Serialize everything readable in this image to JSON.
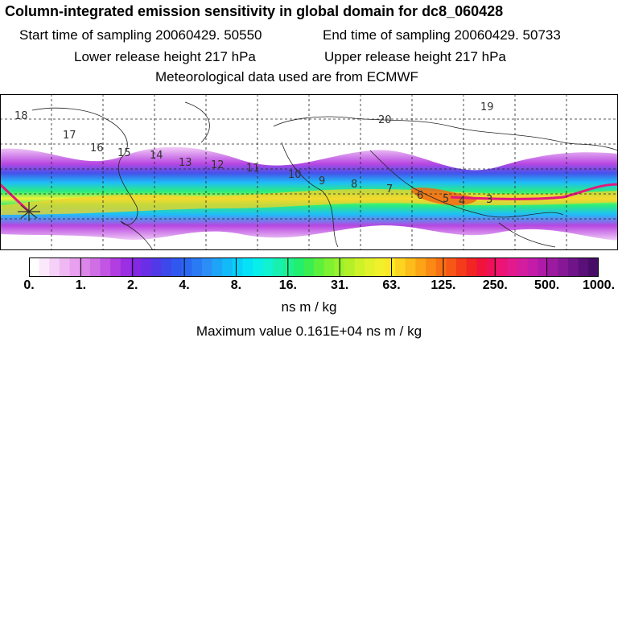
{
  "header": {
    "title": "Column-integrated emission sensitivity in global domain for dc8_060428",
    "start_label": "Start time of sampling 20060429. 50550",
    "end_label": "End time of sampling 20060429. 50733",
    "lower_label": "Lower release height  217 hPa",
    "upper_label": "Upper release height  217 hPa",
    "met_label": "Meteorological data used are from ECMWF"
  },
  "map": {
    "time_labels": [
      "18",
      "17",
      "16",
      "15",
      "14",
      "13",
      "12",
      "11",
      "10",
      "9",
      "8",
      "7",
      "6",
      "5",
      "4",
      "3",
      "20",
      "19"
    ]
  },
  "colorbar": {
    "tick_labels": [
      "0.",
      "1.",
      "2.",
      "4.",
      "8.",
      "16.",
      "31.",
      "63.",
      "125.",
      "250.",
      "500.",
      "1000."
    ],
    "colors": [
      "#ffffff",
      "#fbe8fb",
      "#f5d0f7",
      "#efb8f3",
      "#e8a0ef",
      "#dd86ea",
      "#d06ee6",
      "#c255e3",
      "#b23de0",
      "#9c2fe2",
      "#8428e3",
      "#6a2ee6",
      "#5239e8",
      "#3d48eb",
      "#3058ef",
      "#2a68f2",
      "#2a7af4",
      "#2a8ef6",
      "#1ea4f7",
      "#12baf8",
      "#08d0f9",
      "#05e2f7",
      "#08eee8",
      "#10f2d0",
      "#18f0b0",
      "#1ef090",
      "#22ee70",
      "#3aee50",
      "#5cf03c",
      "#7ef232",
      "#98f22c",
      "#b4f028",
      "#cef228",
      "#e2f22a",
      "#f2f02a",
      "#fae826",
      "#fcd420",
      "#fcbc1a",
      "#fca416",
      "#fa8a14",
      "#f87014",
      "#f65616",
      "#f43c1a",
      "#f22424",
      "#f0143c",
      "#ee1058",
      "#ec1474",
      "#e21a8e",
      "#d41c9e",
      "#c41ca8",
      "#b01aa8",
      "#9c1aa0",
      "#861896",
      "#70148a",
      "#5a1078",
      "#460c66"
    ],
    "unit": "ns m / kg"
  },
  "footer": {
    "max_value": "Maximum value  0.161E+04 ns m / kg"
  }
}
